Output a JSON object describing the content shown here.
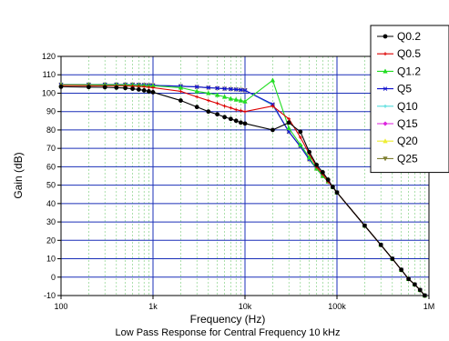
{
  "chart_data": {
    "type": "line",
    "caption": "Low Pass Response for Central Frequency 10 kHz",
    "xlabel": "Frequency (Hz)",
    "ylabel": "Gain (dB)",
    "x_scale": "log",
    "xlim": [
      100,
      1000000
    ],
    "ylim": [
      -10,
      120
    ],
    "x_ticks": [
      {
        "value": 100,
        "label": "100"
      },
      {
        "value": 1000,
        "label": "1k"
      },
      {
        "value": 10000,
        "label": "10k"
      },
      {
        "value": 100000,
        "label": "100k"
      },
      {
        "value": 1000000,
        "label": "1M"
      }
    ],
    "y_ticks": [
      -10,
      0,
      10,
      20,
      30,
      40,
      50,
      60,
      70,
      80,
      90,
      100,
      110,
      120
    ],
    "grid": true,
    "legend_position": "top-right",
    "series": [
      {
        "name": "Q0.2",
        "color": "#000000",
        "marker": "circle",
        "points": [
          [
            100,
            103.5
          ],
          [
            200,
            103.3
          ],
          [
            300,
            103.2
          ],
          [
            400,
            103
          ],
          [
            500,
            102.8
          ],
          [
            600,
            102.4
          ],
          [
            700,
            102
          ],
          [
            800,
            101.5
          ],
          [
            900,
            101
          ],
          [
            1000,
            100.5
          ],
          [
            2000,
            96
          ],
          [
            3000,
            92.5
          ],
          [
            4000,
            90
          ],
          [
            5000,
            88.5
          ],
          [
            6000,
            87
          ],
          [
            7000,
            86
          ],
          [
            8000,
            85
          ],
          [
            9000,
            84
          ],
          [
            10000,
            83.5
          ],
          [
            20000,
            80
          ],
          [
            30000,
            84
          ],
          [
            40000,
            79
          ],
          [
            50000,
            68
          ],
          [
            60000,
            61
          ],
          [
            70000,
            57
          ],
          [
            80000,
            53
          ],
          [
            90000,
            49
          ],
          [
            100000,
            46
          ],
          [
            200000,
            28
          ],
          [
            300000,
            17.5
          ],
          [
            400000,
            10
          ],
          [
            500000,
            4
          ],
          [
            600000,
            -1
          ],
          [
            700000,
            -4
          ],
          [
            800000,
            -7
          ],
          [
            900000,
            -10
          ]
        ]
      },
      {
        "name": "Q0.5",
        "color": "#dd0000",
        "marker": "plus",
        "points": [
          [
            100,
            104.2
          ],
          [
            200,
            104.1
          ],
          [
            300,
            104
          ],
          [
            400,
            104
          ],
          [
            500,
            104
          ],
          [
            600,
            103.8
          ],
          [
            700,
            103.7
          ],
          [
            800,
            103.5
          ],
          [
            900,
            103.2
          ],
          [
            1000,
            103
          ],
          [
            2000,
            101
          ],
          [
            3000,
            98
          ],
          [
            4000,
            96
          ],
          [
            5000,
            94.5
          ],
          [
            6000,
            93
          ],
          [
            7000,
            92
          ],
          [
            8000,
            91
          ],
          [
            9000,
            90.5
          ],
          [
            10000,
            90
          ],
          [
            20000,
            93
          ],
          [
            30000,
            86
          ],
          [
            40000,
            76
          ],
          [
            50000,
            67
          ],
          [
            60000,
            60
          ],
          [
            70000,
            56
          ],
          [
            80000,
            52
          ],
          [
            90000,
            49
          ],
          [
            100000,
            46
          ],
          [
            200000,
            28
          ],
          [
            300000,
            17.5
          ],
          [
            400000,
            10
          ],
          [
            500000,
            4
          ],
          [
            600000,
            -1
          ],
          [
            700000,
            -4
          ],
          [
            800000,
            -7
          ],
          [
            900000,
            -10
          ]
        ]
      },
      {
        "name": "Q1.2",
        "color": "#22dd22",
        "marker": "triangle",
        "points": [
          [
            100,
            104.5
          ],
          [
            200,
            104.5
          ],
          [
            300,
            104.5
          ],
          [
            400,
            104.5
          ],
          [
            500,
            104.5
          ],
          [
            600,
            104.4
          ],
          [
            700,
            104.3
          ],
          [
            800,
            104.2
          ],
          [
            900,
            104
          ],
          [
            1000,
            104
          ],
          [
            2000,
            103
          ],
          [
            3000,
            101
          ],
          [
            4000,
            100
          ],
          [
            5000,
            99
          ],
          [
            6000,
            98
          ],
          [
            7000,
            97
          ],
          [
            8000,
            96.5
          ],
          [
            9000,
            96
          ],
          [
            10000,
            95.5
          ],
          [
            20000,
            107
          ],
          [
            30000,
            81
          ],
          [
            40000,
            72
          ],
          [
            50000,
            65
          ],
          [
            60000,
            59
          ],
          [
            70000,
            55
          ],
          [
            80000,
            52
          ],
          [
            90000,
            49
          ],
          [
            100000,
            46
          ],
          [
            200000,
            28
          ],
          [
            300000,
            17.5
          ],
          [
            400000,
            10
          ],
          [
            500000,
            4
          ],
          [
            600000,
            -1
          ],
          [
            700000,
            -4
          ],
          [
            800000,
            -7
          ],
          [
            900000,
            -10
          ]
        ]
      },
      {
        "name": "Q5",
        "color": "#1111cc",
        "marker": "cross",
        "points": [
          [
            100,
            104.5
          ],
          [
            200,
            104.5
          ],
          [
            300,
            104.6
          ],
          [
            400,
            104.6
          ],
          [
            500,
            104.6
          ],
          [
            600,
            104.5
          ],
          [
            700,
            104.5
          ],
          [
            800,
            104.4
          ],
          [
            900,
            104.3
          ],
          [
            1000,
            104.2
          ],
          [
            2000,
            103.8
          ],
          [
            3000,
            103.4
          ],
          [
            4000,
            103
          ],
          [
            5000,
            102.7
          ],
          [
            6000,
            102.4
          ],
          [
            7000,
            102.2
          ],
          [
            8000,
            102
          ],
          [
            9000,
            101.8
          ],
          [
            10000,
            101.5
          ],
          [
            20000,
            94
          ],
          [
            30000,
            79
          ],
          [
            40000,
            71
          ],
          [
            50000,
            64
          ],
          [
            60000,
            59
          ],
          [
            70000,
            55
          ],
          [
            80000,
            52
          ],
          [
            90000,
            49
          ],
          [
            100000,
            46
          ],
          [
            200000,
            28
          ],
          [
            300000,
            17.5
          ],
          [
            400000,
            10
          ],
          [
            500000,
            4
          ],
          [
            600000,
            -1
          ],
          [
            700000,
            -4
          ],
          [
            800000,
            -7
          ],
          [
            900000,
            -10
          ]
        ]
      },
      {
        "name": "Q10",
        "color": "#55dddd",
        "marker": "plus",
        "points": [
          [
            100,
            104.6
          ],
          [
            200,
            104.6
          ],
          [
            300,
            104.7
          ],
          [
            400,
            104.7
          ],
          [
            500,
            104.7
          ],
          [
            600,
            104.6
          ],
          [
            700,
            104.6
          ],
          [
            800,
            104.5
          ],
          [
            900,
            104.4
          ],
          [
            1000,
            104.3
          ],
          [
            2000,
            103.8
          ],
          [
            3000,
            103.4
          ],
          [
            4000,
            103
          ],
          [
            5000,
            102.7
          ],
          [
            6000,
            102.4
          ],
          [
            7000,
            102.2
          ],
          [
            8000,
            102
          ],
          [
            9000,
            101.8
          ],
          [
            10000,
            101.6
          ],
          [
            20000,
            93.5
          ],
          [
            30000,
            79
          ],
          [
            40000,
            71
          ],
          [
            50000,
            64
          ],
          [
            60000,
            59
          ],
          [
            70000,
            55
          ],
          [
            80000,
            52
          ],
          [
            90000,
            49
          ],
          [
            100000,
            46
          ],
          [
            200000,
            28
          ],
          [
            300000,
            17.5
          ],
          [
            400000,
            10
          ],
          [
            500000,
            4
          ],
          [
            600000,
            -1
          ],
          [
            700000,
            -4
          ],
          [
            800000,
            -7
          ],
          [
            900000,
            -10
          ]
        ]
      },
      {
        "name": "Q15",
        "color": "#dd22dd",
        "marker": "diamond",
        "points": [
          [
            100,
            104.6
          ],
          [
            200,
            104.6
          ],
          [
            300,
            104.7
          ],
          [
            400,
            104.7
          ],
          [
            500,
            104.7
          ],
          [
            600,
            104.6
          ],
          [
            700,
            104.6
          ],
          [
            800,
            104.5
          ],
          [
            900,
            104.4
          ],
          [
            1000,
            104.3
          ],
          [
            2000,
            103.8
          ],
          [
            3000,
            103.4
          ],
          [
            4000,
            103
          ],
          [
            5000,
            102.7
          ],
          [
            6000,
            102.4
          ],
          [
            7000,
            102.2
          ],
          [
            8000,
            102
          ],
          [
            9000,
            101.8
          ],
          [
            10000,
            101.6
          ],
          [
            20000,
            93.5
          ],
          [
            30000,
            79
          ],
          [
            40000,
            71
          ],
          [
            50000,
            64
          ],
          [
            60000,
            59
          ],
          [
            70000,
            55
          ],
          [
            80000,
            52
          ],
          [
            90000,
            49
          ],
          [
            100000,
            46
          ],
          [
            200000,
            28
          ],
          [
            300000,
            17.5
          ],
          [
            400000,
            10
          ],
          [
            500000,
            4
          ],
          [
            600000,
            -1
          ],
          [
            700000,
            -4
          ],
          [
            800000,
            -7
          ],
          [
            900000,
            -10
          ]
        ]
      },
      {
        "name": "Q20",
        "color": "#eeee33",
        "marker": "triangle",
        "points": [
          [
            100,
            104.6
          ],
          [
            200,
            104.6
          ],
          [
            300,
            104.7
          ],
          [
            400,
            104.7
          ],
          [
            500,
            104.7
          ],
          [
            600,
            104.6
          ],
          [
            700,
            104.6
          ],
          [
            800,
            104.5
          ],
          [
            900,
            104.4
          ],
          [
            1000,
            104.3
          ],
          [
            2000,
            103.8
          ],
          [
            3000,
            103.4
          ],
          [
            4000,
            103
          ],
          [
            5000,
            102.7
          ],
          [
            6000,
            102.4
          ],
          [
            7000,
            102.2
          ],
          [
            8000,
            102
          ],
          [
            9000,
            101.8
          ],
          [
            10000,
            101.6
          ],
          [
            20000,
            93.5
          ],
          [
            30000,
            79
          ],
          [
            40000,
            71
          ],
          [
            50000,
            64
          ],
          [
            60000,
            59
          ],
          [
            70000,
            55
          ],
          [
            80000,
            52
          ],
          [
            90000,
            49
          ],
          [
            100000,
            46
          ],
          [
            200000,
            28
          ],
          [
            300000,
            17.5
          ],
          [
            400000,
            10
          ],
          [
            500000,
            4
          ],
          [
            600000,
            -1
          ],
          [
            700000,
            -4
          ],
          [
            800000,
            -7
          ],
          [
            900000,
            -10
          ]
        ]
      },
      {
        "name": "Q25",
        "color": "#808033",
        "marker": "triangle-down",
        "points": [
          [
            100,
            104.7
          ],
          [
            200,
            104.7
          ],
          [
            300,
            104.7
          ],
          [
            400,
            104.7
          ],
          [
            500,
            104.7
          ],
          [
            600,
            104.7
          ],
          [
            700,
            104.6
          ],
          [
            800,
            104.5
          ],
          [
            900,
            104.4
          ],
          [
            1000,
            104.3
          ],
          [
            2000,
            103.8
          ],
          [
            3000,
            103.4
          ],
          [
            4000,
            103
          ],
          [
            5000,
            102.7
          ],
          [
            6000,
            102.4
          ],
          [
            7000,
            102.2
          ],
          [
            8000,
            102
          ],
          [
            9000,
            101.8
          ],
          [
            10000,
            101.6
          ],
          [
            20000,
            93.5
          ],
          [
            30000,
            79
          ],
          [
            40000,
            71
          ],
          [
            50000,
            64
          ],
          [
            60000,
            59
          ],
          [
            70000,
            55
          ],
          [
            80000,
            52
          ],
          [
            90000,
            49
          ],
          [
            100000,
            46
          ],
          [
            200000,
            28
          ],
          [
            300000,
            17.5
          ],
          [
            400000,
            10
          ],
          [
            500000,
            4
          ],
          [
            600000,
            -1
          ],
          [
            700000,
            -4
          ],
          [
            800000,
            -7
          ],
          [
            900000,
            -10
          ]
        ]
      }
    ]
  }
}
